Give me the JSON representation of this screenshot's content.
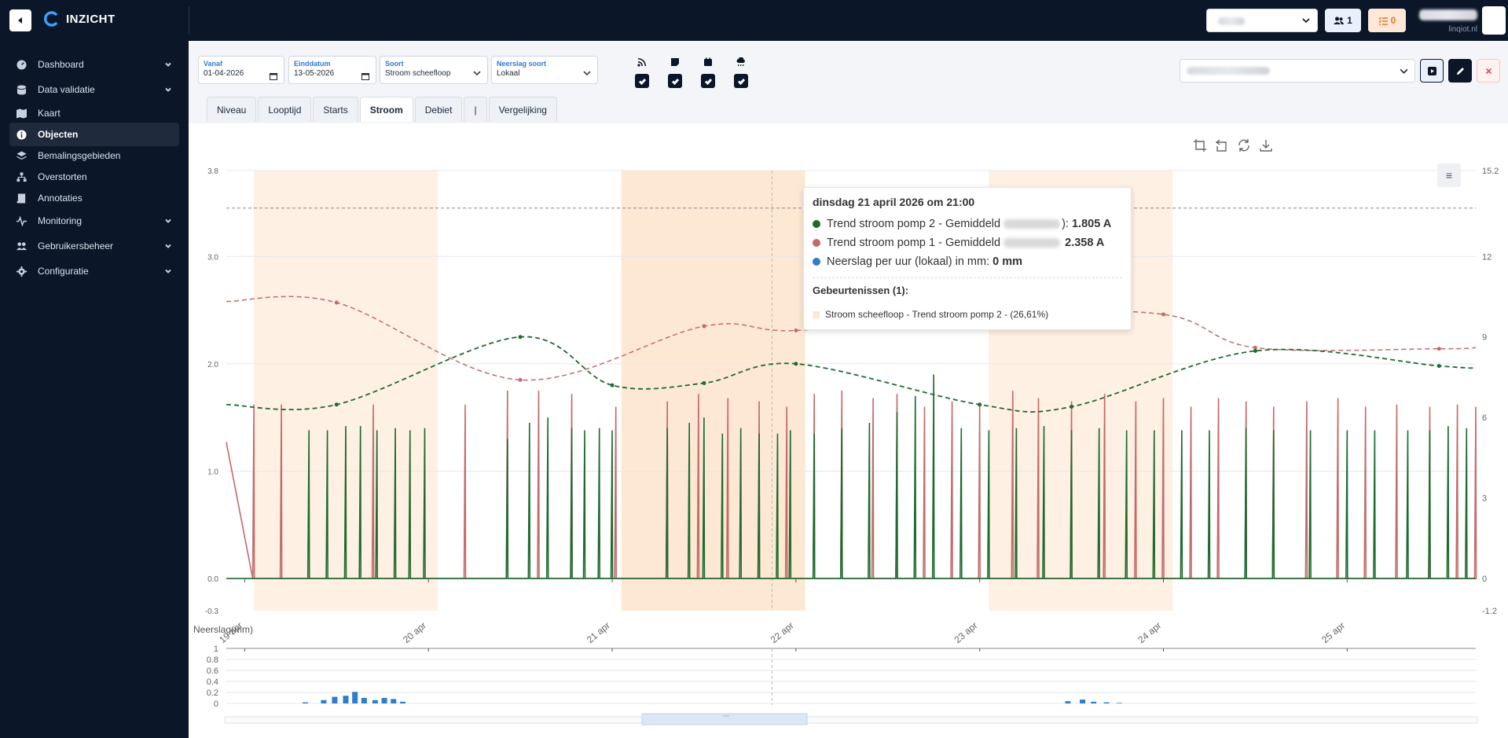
{
  "app": {
    "brand": "INZICHT",
    "account_label": "linqiot.nl",
    "users_count": "1",
    "tasks_count": "0"
  },
  "sidebar": {
    "items": [
      {
        "label": "Dashboard",
        "icon": "dashboard-icon",
        "chevron": true
      },
      {
        "label": "Data validatie",
        "icon": "database-icon",
        "chevron": true
      },
      {
        "label": "Kaart",
        "icon": "map-icon",
        "chevron": false
      },
      {
        "label": "Objecten",
        "icon": "info-icon",
        "chevron": false,
        "active": true
      },
      {
        "label": "Bemalingsgebieden",
        "icon": "layers-icon",
        "chevron": false
      },
      {
        "label": "Overstorten",
        "icon": "sitemap-icon",
        "chevron": false
      },
      {
        "label": "Annotaties",
        "icon": "book-icon",
        "chevron": false
      },
      {
        "label": "Monitoring",
        "icon": "pulse-icon",
        "chevron": true
      },
      {
        "label": "Gebruikersbeheer",
        "icon": "users-icon",
        "chevron": true
      },
      {
        "label": "Configuratie",
        "icon": "gear-icon",
        "chevron": true
      }
    ]
  },
  "filters": {
    "vanaf": {
      "label": "Vanaf",
      "value": "01-04-2026"
    },
    "einddatum": {
      "label": "Einddatum",
      "value": "13-05-2026"
    },
    "soort": {
      "label": "Soort",
      "value": "Stroom scheefloop"
    },
    "neerslag_soort": {
      "label": "Neerslag soort",
      "value": "Lokaal"
    },
    "toggles": [
      {
        "icon": "rss-icon",
        "checked": true
      },
      {
        "icon": "note-icon",
        "checked": true
      },
      {
        "icon": "calendar-icon",
        "checked": true
      },
      {
        "icon": "cloud-rain-icon",
        "checked": true
      }
    ]
  },
  "tabs": [
    "Niveau",
    "Looptijd",
    "Starts",
    "Stroom",
    "Debiet",
    "|",
    "Vergelijking"
  ],
  "active_tab": "Stroom",
  "tooltip": {
    "title": "dinsdag 21 april 2026 om 21:00",
    "rows": [
      {
        "prefix": "Trend stroom pomp 2 - Gemiddeld",
        "suffix": "):",
        "value": "1.805 A",
        "color": "#1e6b2f"
      },
      {
        "prefix": "Trend stroom pomp 1 - Gemiddeld",
        "suffix": "",
        "value": "2.358 A",
        "color": "#c46a6a"
      },
      {
        "prefix": "Neerslag per uur (lokaal) in mm:",
        "suffix": "",
        "value": "0 mm",
        "color": "#2e7ec9"
      }
    ],
    "events_title": "Gebeurtenissen (1):",
    "event": "Stroom scheefloop - Trend stroom pomp 2 - (26,61%)"
  },
  "colors": {
    "pomp1": "#c46a6a",
    "pomp2": "#1e6b2f",
    "neerslag": "#2e7ec9",
    "event_band": "#fdebd8"
  },
  "chart_data": [
    {
      "type": "line",
      "title": "",
      "xlabel": "",
      "ylabel": "",
      "x_tick_labels": [
        "19 apr",
        "20 apr",
        "21 apr",
        "22 apr",
        "23 apr",
        "24 apr",
        "25 apr"
      ],
      "x_range_days": [
        18.9,
        25.7
      ],
      "y_left_ticks": [
        "-0.3",
        "0.0",
        "1.0",
        "2.0",
        "3.0",
        "3.8"
      ],
      "y_left_range": [
        -0.3,
        3.8
      ],
      "y_right_ticks": [
        "-1.2",
        "0",
        "3",
        "6",
        "9",
        "12",
        "15.2"
      ],
      "y_right_range": [
        -1.2,
        15.2
      ],
      "threshold_line_y": 3.45,
      "event_bands": [
        [
          19.05,
          20.05
        ],
        [
          21.05,
          22.05
        ],
        [
          23.05,
          24.05
        ]
      ],
      "series": [
        {
          "name": "Trend stroom pomp 1 - Gemiddeld",
          "style": "dashed",
          "points": [
            [
              18.9,
              2.58
            ],
            [
              19.5,
              2.57
            ],
            [
              20.5,
              1.85
            ],
            [
              21.5,
              2.35
            ],
            [
              22.0,
              2.31
            ],
            [
              23.0,
              2.48
            ],
            [
              24.0,
              2.46
            ],
            [
              24.5,
              2.15
            ],
            [
              25.5,
              2.14
            ],
            [
              25.7,
              2.15
            ]
          ]
        },
        {
          "name": "Trend stroom pomp 2 - Gemiddeld",
          "style": "dashed",
          "points": [
            [
              18.9,
              1.62
            ],
            [
              19.5,
              1.62
            ],
            [
              20.5,
              2.25
            ],
            [
              21.0,
              1.8
            ],
            [
              21.5,
              1.82
            ],
            [
              22.0,
              2.0
            ],
            [
              23.0,
              1.62
            ],
            [
              23.5,
              1.6
            ],
            [
              24.5,
              2.12
            ],
            [
              25.5,
              1.98
            ],
            [
              25.7,
              1.96
            ]
          ]
        },
        {
          "name": "Stroom pomp 1",
          "style": "spikes",
          "start": [
            18.9,
            1.27
          ],
          "spikes": [
            [
              19.05,
              1.62
            ],
            [
              19.2,
              1.62
            ],
            [
              19.7,
              1.62
            ],
            [
              20.2,
              1.62
            ],
            [
              20.43,
              1.75
            ],
            [
              20.6,
              1.75
            ],
            [
              20.78,
              1.72
            ],
            [
              21.02,
              1.6
            ],
            [
              21.3,
              1.65
            ],
            [
              21.47,
              1.72
            ],
            [
              21.63,
              1.68
            ],
            [
              21.8,
              1.65
            ],
            [
              21.95,
              1.6
            ],
            [
              22.1,
              1.72
            ],
            [
              22.25,
              1.75
            ],
            [
              22.42,
              1.68
            ],
            [
              22.55,
              1.72
            ],
            [
              22.7,
              1.6
            ],
            [
              22.85,
              1.65
            ],
            [
              23.0,
              1.62
            ],
            [
              23.18,
              1.75
            ],
            [
              23.32,
              1.68
            ],
            [
              23.5,
              1.65
            ],
            [
              23.68,
              1.72
            ],
            [
              23.85,
              1.65
            ],
            [
              24.0,
              1.68
            ],
            [
              24.15,
              1.6
            ],
            [
              24.3,
              1.68
            ],
            [
              24.45,
              1.65
            ],
            [
              24.6,
              1.6
            ],
            [
              24.78,
              1.65
            ],
            [
              24.95,
              1.68
            ],
            [
              25.1,
              1.6
            ],
            [
              25.27,
              1.62
            ],
            [
              25.45,
              1.6
            ],
            [
              25.6,
              1.62
            ],
            [
              25.7,
              1.6
            ]
          ]
        },
        {
          "name": "Stroom pomp 2",
          "style": "spikes",
          "start": [
            18.9,
            0.0
          ],
          "spikes": [
            [
              19.35,
              1.38
            ],
            [
              19.45,
              1.38
            ],
            [
              19.55,
              1.42
            ],
            [
              19.63,
              1.42
            ],
            [
              19.72,
              1.38
            ],
            [
              19.82,
              1.4
            ],
            [
              19.9,
              1.38
            ],
            [
              19.98,
              1.4
            ],
            [
              20.43,
              1.3
            ],
            [
              20.55,
              1.45
            ],
            [
              20.65,
              1.5
            ],
            [
              20.78,
              1.4
            ],
            [
              20.85,
              1.38
            ],
            [
              20.93,
              1.4
            ],
            [
              21.0,
              1.38
            ],
            [
              21.3,
              1.4
            ],
            [
              21.42,
              1.45
            ],
            [
              21.5,
              1.5
            ],
            [
              21.6,
              1.35
            ],
            [
              21.7,
              1.4
            ],
            [
              21.8,
              1.35
            ],
            [
              21.9,
              1.35
            ],
            [
              21.97,
              1.38
            ],
            [
              22.1,
              1.35
            ],
            [
              22.25,
              1.4
            ],
            [
              22.4,
              1.45
            ],
            [
              22.55,
              1.55
            ],
            [
              22.65,
              1.7
            ],
            [
              22.75,
              1.9
            ],
            [
              22.9,
              1.4
            ],
            [
              23.05,
              1.38
            ],
            [
              23.2,
              1.4
            ],
            [
              23.35,
              1.42
            ],
            [
              23.5,
              1.38
            ],
            [
              23.65,
              1.4
            ],
            [
              23.8,
              1.38
            ],
            [
              23.95,
              1.38
            ],
            [
              24.1,
              1.38
            ],
            [
              24.25,
              1.38
            ],
            [
              24.45,
              1.4
            ],
            [
              24.6,
              1.38
            ],
            [
              24.8,
              1.38
            ],
            [
              25.0,
              1.38
            ],
            [
              25.15,
              1.38
            ],
            [
              25.33,
              1.38
            ],
            [
              25.45,
              1.38
            ],
            [
              25.55,
              1.42
            ],
            [
              25.65,
              1.4
            ]
          ]
        }
      ]
    },
    {
      "type": "bar",
      "title": "Neerslag(mm)",
      "ylabel": "Neerslag(mm)",
      "ylim": [
        0,
        1
      ],
      "y_ticks": [
        "0",
        "0.2",
        "0.4",
        "0.6",
        "0.8",
        "1"
      ],
      "cursor_day": 21.87,
      "bars": [
        [
          19.33,
          0.02
        ],
        [
          19.43,
          0.06
        ],
        [
          19.49,
          0.12
        ],
        [
          19.55,
          0.14
        ],
        [
          19.6,
          0.21
        ],
        [
          19.65,
          0.1
        ],
        [
          19.71,
          0.06
        ],
        [
          19.76,
          0.1
        ],
        [
          19.81,
          0.08
        ],
        [
          19.86,
          0.03
        ],
        [
          23.48,
          0.04
        ],
        [
          23.56,
          0.07
        ],
        [
          23.62,
          0.03
        ],
        [
          23.69,
          0.02
        ],
        [
          23.76,
          0.01
        ]
      ]
    }
  ]
}
